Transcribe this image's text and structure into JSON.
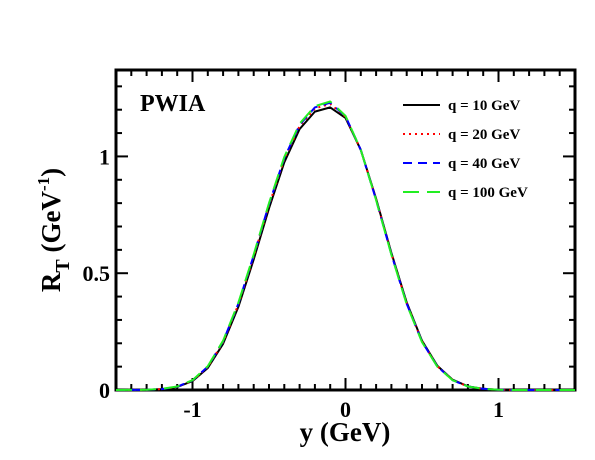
{
  "chart_data": {
    "type": "line",
    "annotation": "PWIA",
    "xlabel": "y (GeV)",
    "ylabel_main": "R",
    "ylabel_sub": "T",
    "ylabel_rest": " (GeV",
    "ylabel_sup": "-1",
    "ylabel_close": ")",
    "xlim": [
      -1.5,
      1.5
    ],
    "ylim": [
      0,
      1.37
    ],
    "xticks": [
      -1,
      0,
      1
    ],
    "xtick_labels": [
      "-1",
      "0",
      "1"
    ],
    "yticks": [
      0,
      0.5,
      1
    ],
    "ytick_labels": [
      "0",
      "0.5",
      "1"
    ],
    "grid": false,
    "legend_position": "top-right",
    "series": [
      {
        "name": "q = 10 GeV",
        "color": "#000000",
        "dash": "solid",
        "x": [
          -1.5,
          -1.3,
          -1.2,
          -1.1,
          -1.0,
          -0.9,
          -0.8,
          -0.7,
          -0.6,
          -0.5,
          -0.4,
          -0.3,
          -0.2,
          -0.1,
          0.0,
          0.1,
          0.2,
          0.3,
          0.4,
          0.5,
          0.6,
          0.7,
          0.8,
          0.9,
          1.0,
          1.1,
          1.2,
          1.3,
          1.5
        ],
        "y": [
          0.0,
          0.001,
          0.004,
          0.013,
          0.038,
          0.094,
          0.198,
          0.356,
          0.559,
          0.778,
          0.975,
          1.117,
          1.192,
          1.21,
          1.165,
          1.028,
          0.819,
          0.587,
          0.375,
          0.211,
          0.104,
          0.044,
          0.016,
          0.005,
          0.001,
          0.0,
          0.0,
          0.0,
          0.0
        ]
      },
      {
        "name": "q = 20 GeV",
        "color": "#ff0000",
        "dash": "dotted",
        "x": [
          -1.5,
          -1.3,
          -1.2,
          -1.1,
          -1.0,
          -0.9,
          -0.8,
          -0.7,
          -0.6,
          -0.5,
          -0.4,
          -0.3,
          -0.2,
          -0.1,
          0.0,
          0.1,
          0.2,
          0.3,
          0.4,
          0.5,
          0.6,
          0.7,
          0.8,
          0.9,
          1.0,
          1.1,
          1.2,
          1.3,
          1.5
        ],
        "y": [
          0.0,
          0.001,
          0.004,
          0.014,
          0.04,
          0.098,
          0.205,
          0.366,
          0.571,
          0.791,
          0.988,
          1.13,
          1.205,
          1.225,
          1.17,
          1.028,
          0.816,
          0.583,
          0.371,
          0.208,
          0.102,
          0.043,
          0.015,
          0.005,
          0.001,
          0.0,
          0.0,
          0.0,
          0.0
        ]
      },
      {
        "name": "q = 40 GeV",
        "color": "#0000ff",
        "dash": "dashed",
        "x": [
          -1.5,
          -1.3,
          -1.2,
          -1.1,
          -1.0,
          -0.9,
          -0.8,
          -0.7,
          -0.6,
          -0.5,
          -0.4,
          -0.3,
          -0.2,
          -0.1,
          0.0,
          0.1,
          0.2,
          0.3,
          0.4,
          0.5,
          0.6,
          0.7,
          0.8,
          0.9,
          1.0,
          1.1,
          1.2,
          1.3,
          1.5
        ],
        "y": [
          0.0,
          0.001,
          0.004,
          0.014,
          0.041,
          0.1,
          0.208,
          0.37,
          0.576,
          0.796,
          0.993,
          1.135,
          1.21,
          1.23,
          1.172,
          1.028,
          0.814,
          0.581,
          0.369,
          0.207,
          0.101,
          0.042,
          0.015,
          0.005,
          0.001,
          0.0,
          0.0,
          0.0,
          0.0
        ]
      },
      {
        "name": "q = 100 GeV",
        "color": "#22ee22",
        "dash": "longdash",
        "x": [
          -1.5,
          -1.3,
          -1.2,
          -1.1,
          -1.0,
          -0.9,
          -0.8,
          -0.7,
          -0.6,
          -0.5,
          -0.4,
          -0.3,
          -0.2,
          -0.1,
          0.0,
          0.1,
          0.2,
          0.3,
          0.4,
          0.5,
          0.6,
          0.7,
          0.8,
          0.9,
          1.0,
          1.1,
          1.2,
          1.3,
          1.5
        ],
        "y": [
          0.0,
          0.001,
          0.005,
          0.015,
          0.042,
          0.102,
          0.211,
          0.374,
          0.58,
          0.8,
          0.998,
          1.14,
          1.215,
          1.235,
          1.174,
          1.028,
          0.813,
          0.579,
          0.367,
          0.205,
          0.1,
          0.042,
          0.015,
          0.005,
          0.001,
          0.0,
          0.0,
          0.0,
          0.0
        ]
      }
    ]
  }
}
